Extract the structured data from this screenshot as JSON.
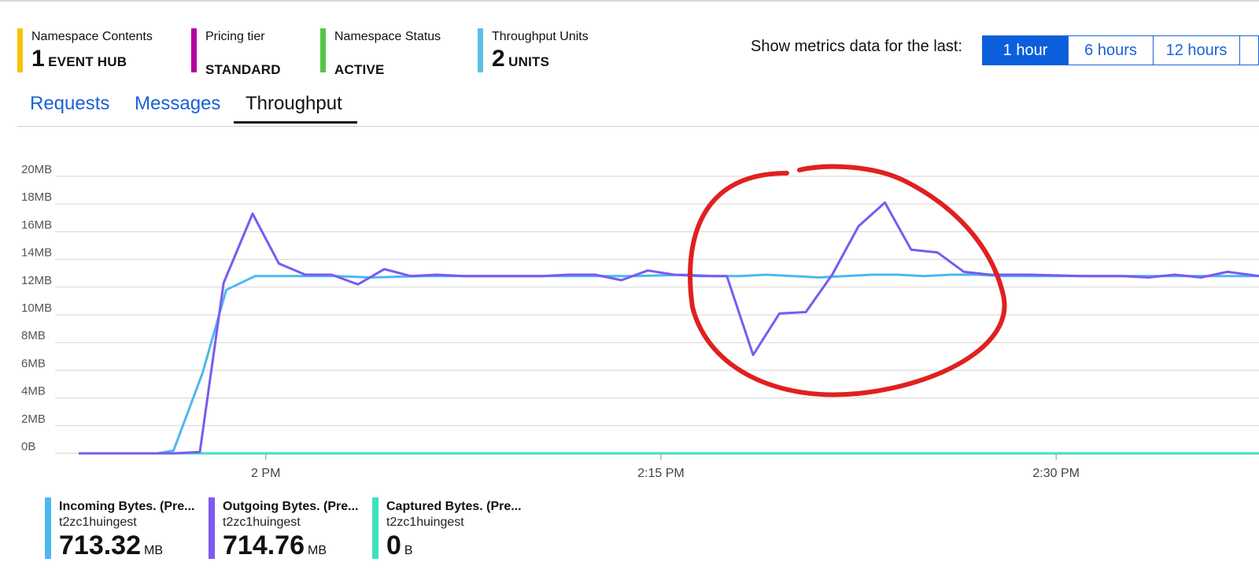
{
  "summary": [
    {
      "label": "Namespace Contents",
      "number": "1",
      "word": "EVENT HUB",
      "color": "#f5c400"
    },
    {
      "label": "Pricing tier",
      "number": "",
      "word": "STANDARD",
      "color": "#b4009e"
    },
    {
      "label": "Namespace Status",
      "number": "",
      "word": "ACTIVE",
      "color": "#54c549"
    },
    {
      "label": "Throughput Units",
      "number": "2",
      "word": "UNITS",
      "color": "#5bbfe8"
    }
  ],
  "time_range": {
    "label": "Show metrics data for the last:",
    "options": [
      "1 hour",
      "6 hours",
      "12 hours",
      ""
    ],
    "selected": "1 hour"
  },
  "tabs": [
    "Requests",
    "Messages",
    "Throughput"
  ],
  "selected_tab": "Throughput",
  "chart_data": {
    "type": "line",
    "y_ticks": [
      "0B",
      "2MB",
      "4MB",
      "6MB",
      "8MB",
      "10MB",
      "12MB",
      "14MB",
      "16MB",
      "18MB",
      "20MB"
    ],
    "ylim": [
      0,
      20
    ],
    "x_ticks": [
      "2 PM",
      "2:15 PM",
      "2:30 PM"
    ],
    "x_tick_minutes": [
      0,
      15,
      30
    ],
    "xlim": [
      -7.1,
      37.7
    ],
    "grid": true,
    "series": [
      {
        "name": "Incoming Bytes. (Pre...",
        "color": "#4cb8f0",
        "points": [
          [
            -7.1,
            0.0
          ],
          [
            -6.1,
            0.0
          ],
          [
            -5.1,
            0.0
          ],
          [
            -4.1,
            0.0
          ],
          [
            -3.5,
            0.2
          ],
          [
            -2.4,
            5.8
          ],
          [
            -1.5,
            11.8
          ],
          [
            -0.4,
            12.8
          ],
          [
            0.6,
            12.8
          ],
          [
            1.6,
            12.8
          ],
          [
            2.6,
            12.8
          ],
          [
            4,
            12.7
          ],
          [
            6,
            12.8
          ],
          [
            8,
            12.8
          ],
          [
            10,
            12.8
          ],
          [
            12,
            12.8
          ],
          [
            14,
            12.8
          ],
          [
            16,
            12.9
          ],
          [
            17,
            12.8
          ],
          [
            18,
            12.8
          ],
          [
            19,
            12.9
          ],
          [
            20,
            12.8
          ],
          [
            21,
            12.7
          ],
          [
            22,
            12.8
          ],
          [
            23,
            12.9
          ],
          [
            24,
            12.9
          ],
          [
            25,
            12.8
          ],
          [
            26,
            12.9
          ],
          [
            27,
            12.9
          ],
          [
            28,
            12.8
          ],
          [
            30,
            12.8
          ],
          [
            32,
            12.8
          ],
          [
            34,
            12.8
          ],
          [
            36,
            12.8
          ],
          [
            37.7,
            12.8
          ]
        ]
      },
      {
        "name": "Outgoing Bytes. (Pre...",
        "color": "#7a5af0",
        "points": [
          [
            -7.1,
            0.0
          ],
          [
            -6.1,
            0.0
          ],
          [
            -5.1,
            0.0
          ],
          [
            -4.1,
            0.0
          ],
          [
            -3.5,
            0.0
          ],
          [
            -2.5,
            0.1
          ],
          [
            -1.6,
            12.3
          ],
          [
            -0.5,
            17.3
          ],
          [
            0.5,
            13.7
          ],
          [
            1.5,
            12.9
          ],
          [
            2.5,
            12.9
          ],
          [
            3.5,
            12.2
          ],
          [
            4.5,
            13.3
          ],
          [
            5.5,
            12.8
          ],
          [
            6.5,
            12.9
          ],
          [
            7.5,
            12.8
          ],
          [
            8.5,
            12.8
          ],
          [
            9.5,
            12.8
          ],
          [
            10.5,
            12.8
          ],
          [
            11.5,
            12.9
          ],
          [
            12.5,
            12.9
          ],
          [
            13.5,
            12.5
          ],
          [
            14.5,
            13.2
          ],
          [
            15.5,
            12.9
          ],
          [
            16.5,
            12.8
          ],
          [
            17.5,
            12.8
          ],
          [
            18.5,
            7.1
          ],
          [
            19.5,
            10.1
          ],
          [
            20.5,
            10.2
          ],
          [
            21.5,
            12.9
          ],
          [
            22.5,
            16.4
          ],
          [
            23.5,
            18.1
          ],
          [
            24.5,
            14.7
          ],
          [
            25.5,
            14.5
          ],
          [
            26.5,
            13.1
          ],
          [
            27.5,
            12.9
          ],
          [
            29,
            12.9
          ],
          [
            31,
            12.8
          ],
          [
            32.5,
            12.8
          ],
          [
            33.5,
            12.7
          ],
          [
            34.5,
            12.9
          ],
          [
            35.5,
            12.7
          ],
          [
            36.5,
            13.1
          ],
          [
            37.7,
            12.8
          ]
        ]
      },
      {
        "name": "Captured Bytes. (Pre...",
        "color": "#3fe0c0",
        "points": [
          [
            -7.1,
            0.0
          ],
          [
            37.7,
            0.0
          ]
        ]
      }
    ]
  },
  "legend": [
    {
      "name": "Incoming Bytes. (Pre...",
      "resource": "t2zc1huingest",
      "value": "713.32",
      "unit": "MB",
      "color": "#4cb8f0"
    },
    {
      "name": "Outgoing Bytes. (Pre...",
      "resource": "t2zc1huingest",
      "value": "714.76",
      "unit": "MB",
      "color": "#7a5af0"
    },
    {
      "name": "Captured Bytes. (Pre...",
      "resource": "t2zc1huingest",
      "value": "0",
      "unit": "B",
      "color": "#3fe0c0"
    }
  ]
}
